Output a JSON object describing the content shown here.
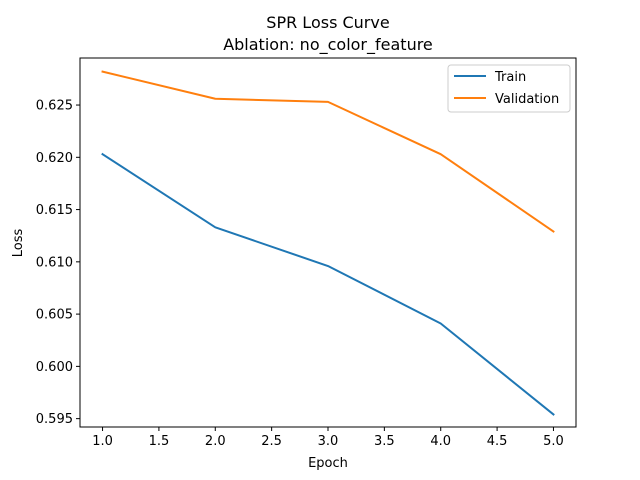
{
  "chart_data": {
    "type": "line",
    "title": "SPR Loss Curve",
    "subtitle": "Ablation: no_color_feature",
    "xlabel": "Epoch",
    "ylabel": "Loss",
    "x": [
      1.0,
      2.0,
      3.0,
      4.0,
      5.0
    ],
    "xlim": [
      0.8,
      5.2
    ],
    "ylim": [
      0.5942,
      0.6295
    ],
    "xticks": [
      1.0,
      1.5,
      2.0,
      2.5,
      3.0,
      3.5,
      4.0,
      4.5,
      5.0
    ],
    "xtick_labels": [
      "1.0",
      "1.5",
      "2.0",
      "2.5",
      "3.0",
      "3.5",
      "4.0",
      "4.5",
      "5.0"
    ],
    "yticks": [
      0.595,
      0.6,
      0.605,
      0.61,
      0.615,
      0.62,
      0.625
    ],
    "ytick_labels": [
      "0.595",
      "0.600",
      "0.605",
      "0.610",
      "0.615",
      "0.620",
      "0.625"
    ],
    "grid": false,
    "legend_position": "top-right",
    "series": [
      {
        "name": "Train",
        "color": "#1f77b4",
        "values": [
          0.6203,
          0.6133,
          0.6096,
          0.6041,
          0.5954
        ]
      },
      {
        "name": "Validation",
        "color": "#ff7f0e",
        "values": [
          0.6282,
          0.6256,
          0.6253,
          0.6203,
          0.6129
        ]
      }
    ]
  }
}
